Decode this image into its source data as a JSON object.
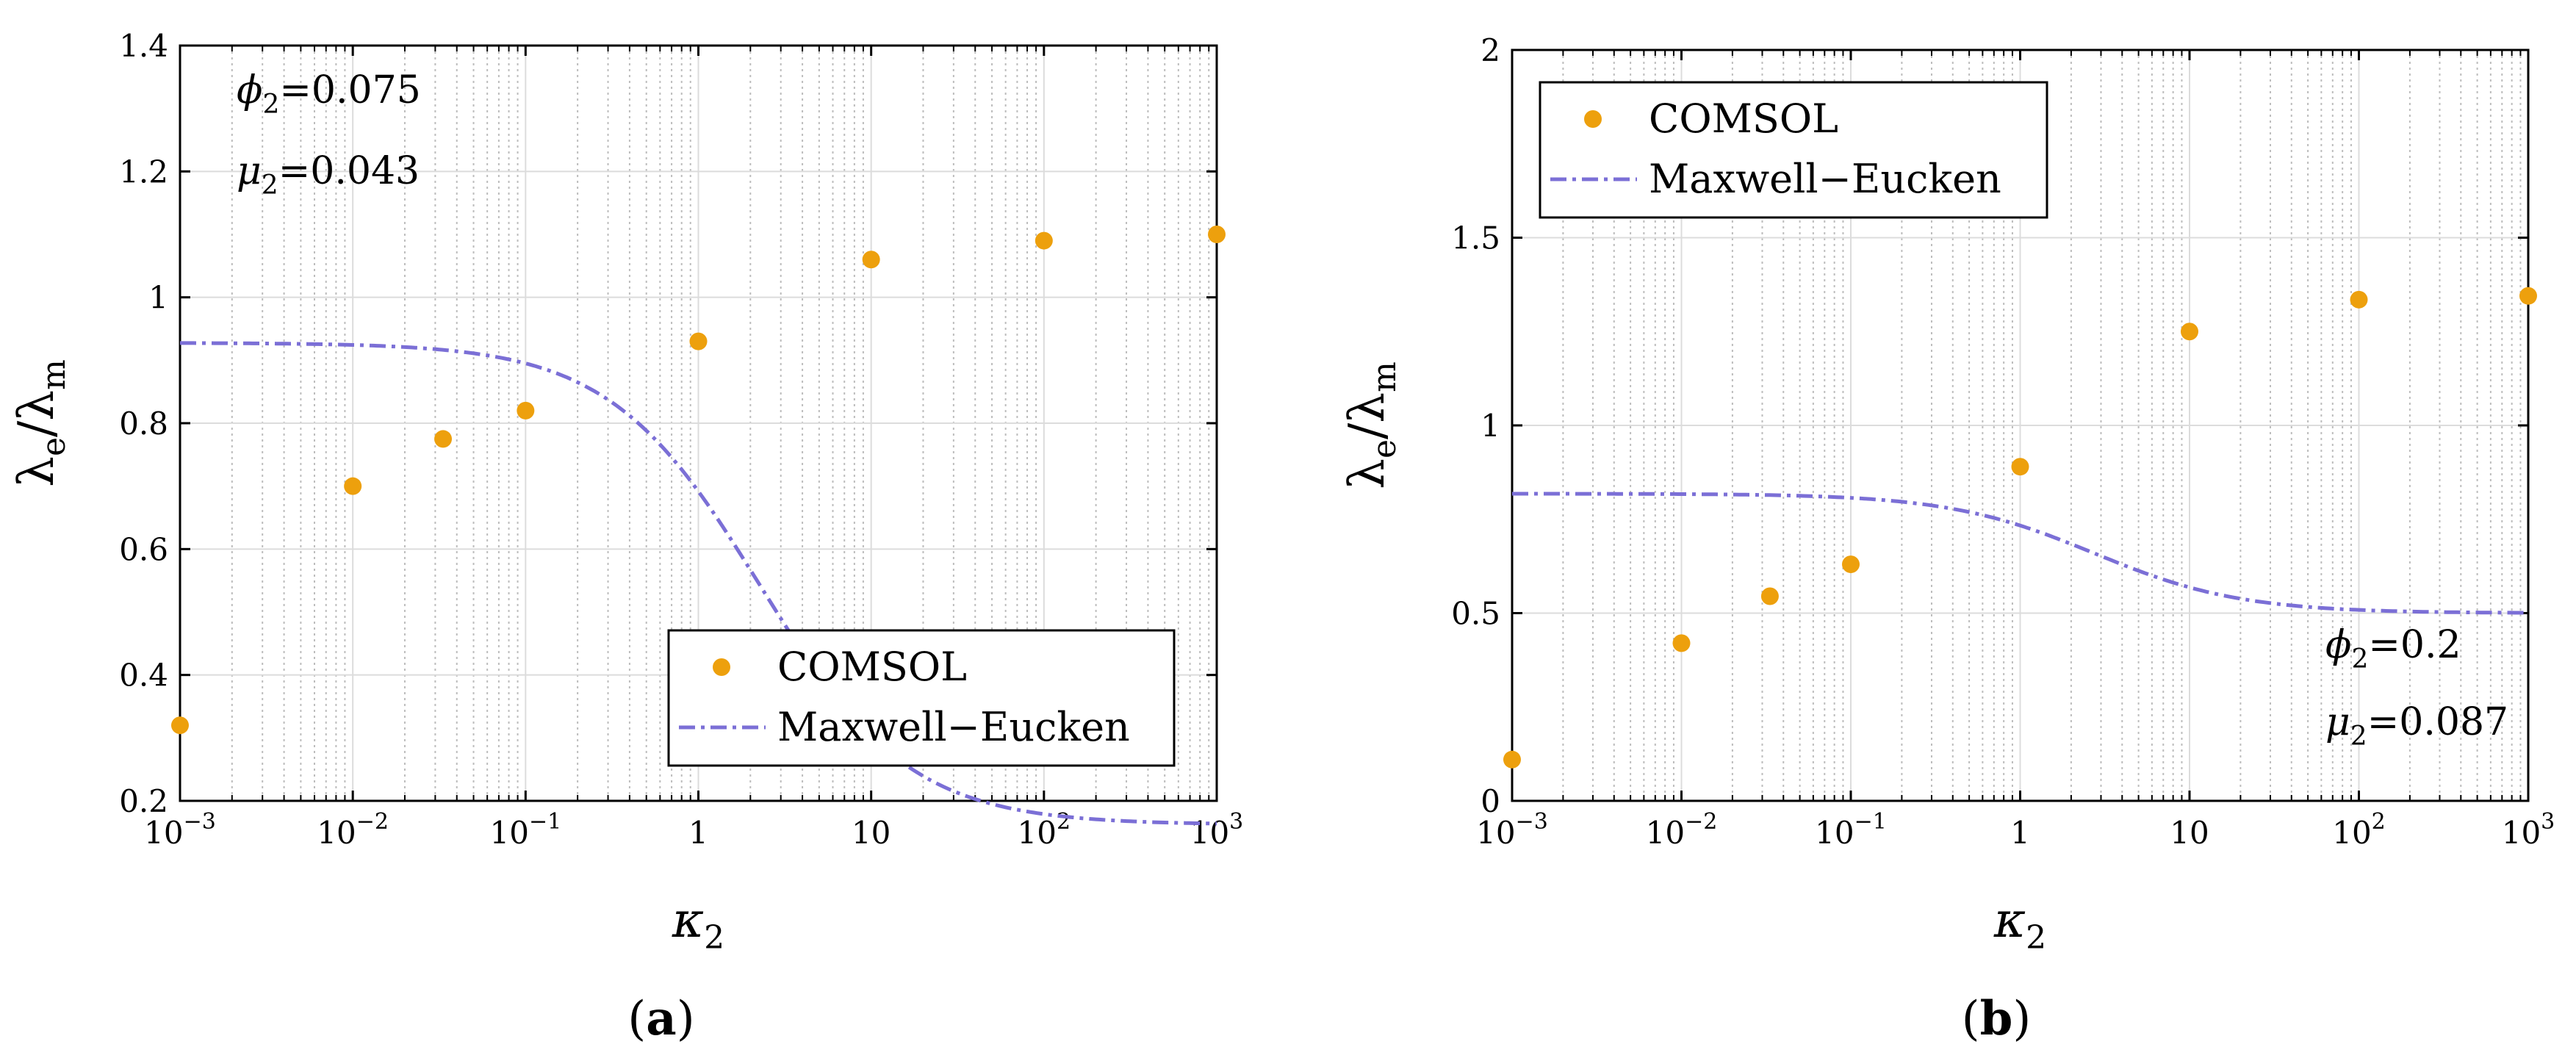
{
  "colors": {
    "comsol": "#EDA00D",
    "maxwell": "#7B6FD6",
    "grid": "#dcdcdc",
    "axis": "#000000"
  },
  "chart_data": [
    {
      "type": "scatter",
      "panel_label": "a",
      "xscale": "log",
      "xlim": [
        0.001,
        1000
      ],
      "ylim": [
        0.2,
        1.4
      ],
      "yticks": [
        0.2,
        0.4,
        0.6,
        0.8,
        1,
        1.2,
        1.4
      ],
      "ytick_labels": [
        "0.2",
        "0.4",
        "0.6",
        "0.8",
        "1",
        "1.2",
        "1.4"
      ],
      "xticks": [
        0.001,
        0.01,
        0.1,
        1,
        10,
        100,
        1000
      ],
      "xtick_labels": [
        {
          "base": "10",
          "exp": "−3"
        },
        {
          "base": "10",
          "exp": "−2"
        },
        {
          "base": "10",
          "exp": "−1"
        },
        {
          "base": "1",
          "exp": ""
        },
        {
          "base": "10",
          "exp": ""
        },
        {
          "base": "10",
          "exp": "2"
        },
        {
          "base": "10",
          "exp": "3"
        }
      ],
      "xlabel": {
        "main": "κ",
        "sub": "2"
      },
      "ylabel": {
        "a": "λ",
        "a_sub": "e",
        "b": "λ",
        "b_sub": "m"
      },
      "grid": true,
      "legend_position": "bottom-right",
      "legend": [
        "COMSOL",
        "Maxwell−Eucken"
      ],
      "annotations": [
        {
          "sym": "ϕ",
          "sub": "2",
          "val": "=0.075"
        },
        {
          "sym": "μ",
          "sub": "2",
          "val": "=0.043"
        }
      ],
      "series": [
        {
          "name": "COMSOL",
          "style": "markers",
          "x": [
            0.001,
            0.01,
            0.0333,
            0.1,
            1,
            10,
            100,
            1000
          ],
          "y": [
            0.32,
            0.7,
            0.775,
            0.82,
            0.93,
            1.06,
            1.09,
            1.1
          ]
        },
        {
          "name": "Maxwell−Eucken",
          "style": "dash-dot line",
          "phi": 0.075
        }
      ]
    },
    {
      "type": "scatter",
      "panel_label": "b",
      "xscale": "log",
      "xlim": [
        0.001,
        1000
      ],
      "ylim": [
        0,
        2
      ],
      "yticks": [
        0,
        0.5,
        1,
        1.5,
        2
      ],
      "ytick_labels": [
        "0",
        "0.5",
        "1",
        "1.5",
        "2"
      ],
      "xticks": [
        0.001,
        0.01,
        0.1,
        1,
        10,
        100,
        1000
      ],
      "xtick_labels": [
        {
          "base": "10",
          "exp": "−3"
        },
        {
          "base": "10",
          "exp": "−2"
        },
        {
          "base": "10",
          "exp": "−1"
        },
        {
          "base": "1",
          "exp": ""
        },
        {
          "base": "10",
          "exp": ""
        },
        {
          "base": "10",
          "exp": "2"
        },
        {
          "base": "10",
          "exp": "3"
        }
      ],
      "xlabel": {
        "main": "κ",
        "sub": "2"
      },
      "ylabel": {
        "a": "λ",
        "a_sub": "e",
        "b": "λ",
        "b_sub": "m"
      },
      "grid": true,
      "legend_position": "top-left",
      "legend": [
        "COMSOL",
        "Maxwell−Eucken"
      ],
      "annotations": [
        {
          "sym": "ϕ",
          "sub": "2",
          "val": "=0.2"
        },
        {
          "sym": "μ",
          "sub": "2",
          "val": "=0.087"
        }
      ],
      "series": [
        {
          "name": "COMSOL",
          "style": "markers",
          "x": [
            0.001,
            0.01,
            0.0333,
            0.1,
            1,
            10,
            100,
            1000
          ],
          "y": [
            0.11,
            0.42,
            0.545,
            0.63,
            0.89,
            1.25,
            1.335,
            1.345
          ]
        },
        {
          "name": "Maxwell−Eucken",
          "style": "dash-dot line",
          "phi": 0.2
        }
      ]
    }
  ]
}
